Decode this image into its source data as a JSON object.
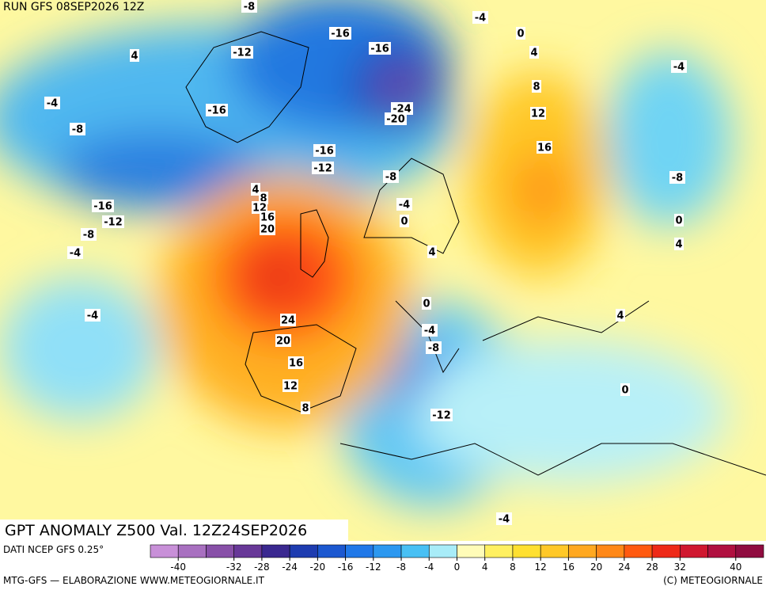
{
  "header": {
    "run": "RUN GFS 08SEP2026 12Z",
    "title": "GPT ANOMALY Z500 Val. 12Z24SEP2026"
  },
  "contour_labels": [
    -8,
    -16,
    -4,
    0,
    4,
    -12,
    -16,
    4,
    -4,
    -4,
    8,
    -24,
    -20,
    12,
    -16,
    -8,
    16,
    -16,
    -12,
    -8,
    -8,
    4,
    8,
    -16,
    -4,
    12,
    16,
    0,
    0,
    -12,
    20,
    -8,
    4,
    -4,
    4,
    0,
    -4,
    4,
    24,
    -4,
    20,
    -8,
    16,
    12,
    0,
    8,
    -12,
    -4
  ],
  "colorbar": {
    "range": [
      -44,
      44
    ],
    "colors": [
      "#c890d8",
      "#a870c0",
      "#8850a8",
      "#683898",
      "#3a2890",
      "#1e3cb0",
      "#1c58d0",
      "#2078e8",
      "#2c98f0",
      "#48c0f4",
      "#a8ecf8",
      "#fffcb8",
      "#fff060",
      "#ffe030",
      "#ffc828",
      "#ffa820",
      "#ff8818",
      "#ff5a10",
      "#ee2a18",
      "#d01830",
      "#b01040",
      "#900c40"
    ],
    "ticks": [
      -40,
      -32,
      -28,
      -24,
      -20,
      -16,
      -12,
      -8,
      -4,
      0,
      4,
      8,
      12,
      16,
      20,
      24,
      28,
      32,
      40
    ]
  },
  "footer": {
    "source": "DATI NCEP GFS 0.25°",
    "credit": "MTG-GFS — ELABORAZIONE WWW.METEOGIORNALE.IT",
    "copyright": "(C) METEOGIORNALE"
  }
}
